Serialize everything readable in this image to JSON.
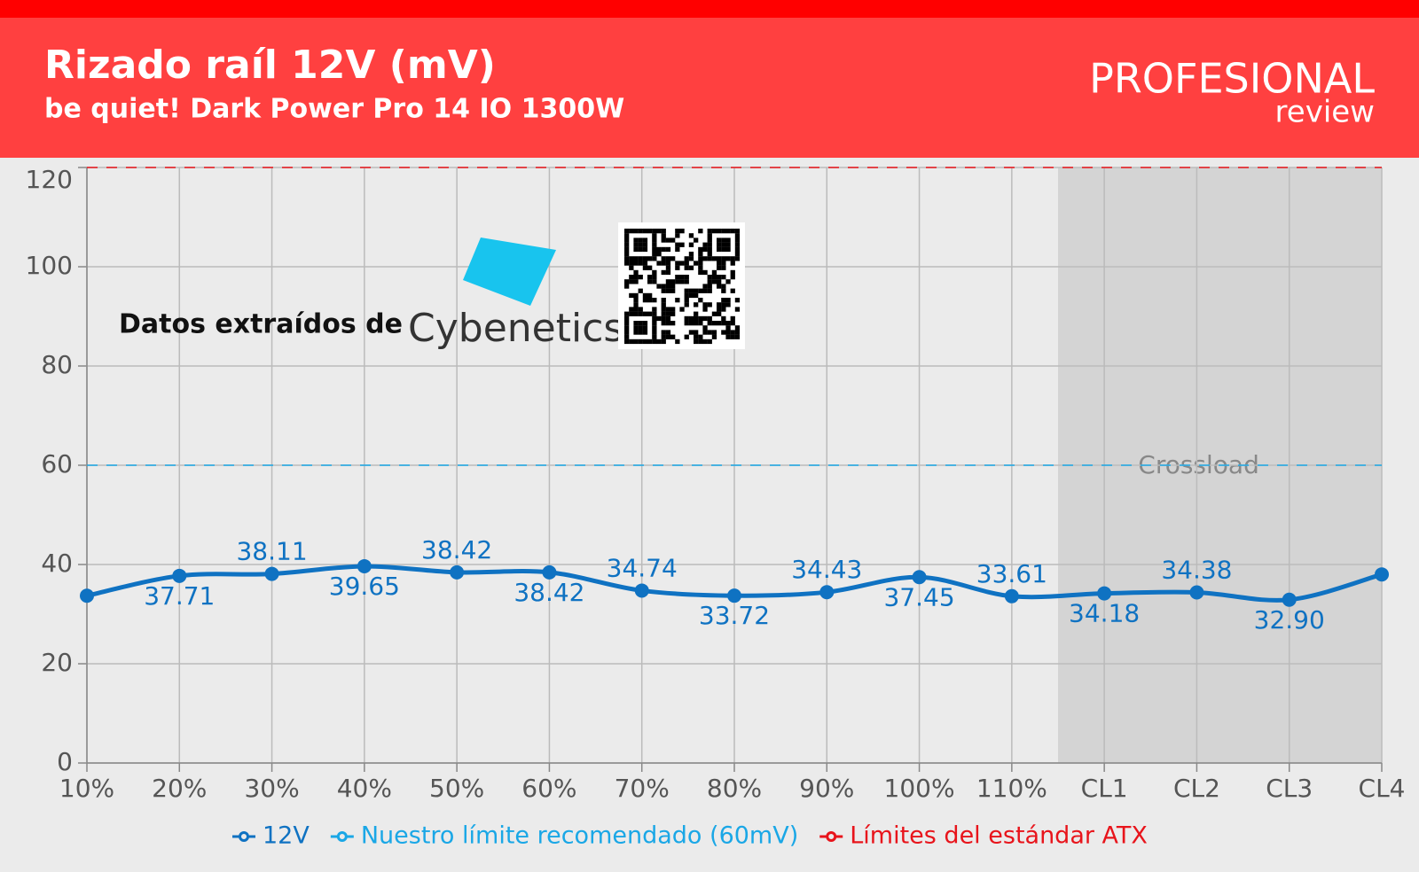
{
  "chart_data": {
    "type": "line",
    "title": "Rizado raíl 12V (mV)",
    "subtitle": "be quiet! Dark Power Pro 14 IO 1300W",
    "brand": "PROFESIONAL",
    "brand_sub": "review",
    "annotations": {
      "source": "Datos extraídos de",
      "source_name": "Cybenetics",
      "region": "Crossload"
    },
    "categories": [
      "10%",
      "20%",
      "30%",
      "40%",
      "50%",
      "60%",
      "70%",
      "80%",
      "90%",
      "100%",
      "110%",
      "CL1",
      "CL2",
      "CL3",
      "CL4"
    ],
    "series": [
      {
        "name": "12V",
        "color": "#0f72c2",
        "values": [
          33.7,
          37.71,
          38.11,
          39.65,
          38.42,
          38.42,
          34.74,
          33.72,
          34.43,
          37.45,
          33.61,
          34.18,
          34.38,
          32.9,
          38.0
        ],
        "value_labels": [
          null,
          "37.71",
          "38.11",
          "39.65",
          "38.42",
          "38.42",
          "34.74",
          "33.72",
          "34.43",
          "37.45",
          "33.61",
          "34.18",
          "34.38",
          "32.90",
          null
        ]
      },
      {
        "name": "Nuestro límite recomendado (60mV)",
        "color": "#1aa7e6",
        "value": 60
      },
      {
        "name": "Límites del estándar ATX",
        "color": "#e8141b",
        "value": 120
      }
    ],
    "ylim": [
      0,
      120
    ],
    "yticks": [
      0,
      20,
      40,
      60,
      80,
      100,
      120
    ],
    "grid": true
  }
}
